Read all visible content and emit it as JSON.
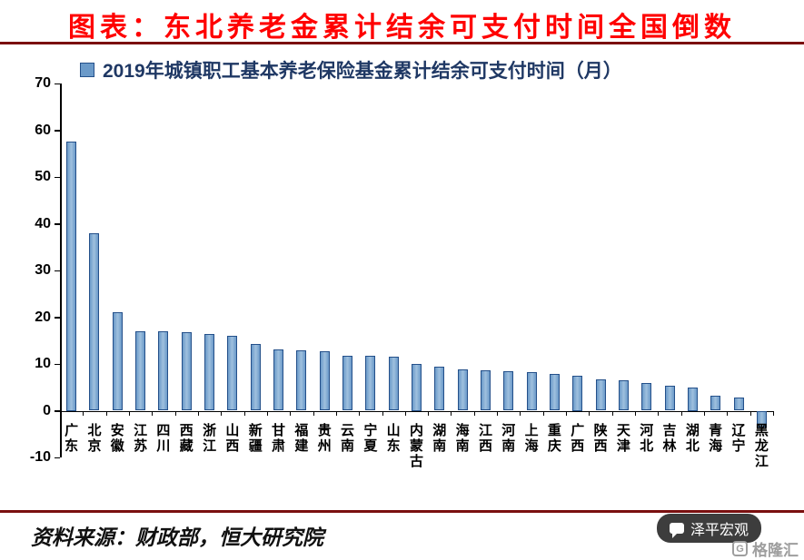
{
  "header": {
    "title": "图表：东北养老金累计结余可支付时间全国倒数"
  },
  "legend": {
    "label": "2019年城镇职工基本养老保险基金累计结余可支付时间（月）"
  },
  "footer": {
    "source": "资料来源：财政部，恒大研究院",
    "watermark": "泽平宏观",
    "logo": "格隆汇",
    "logo_letter": "G"
  },
  "colors": {
    "title_red": "#ff0000",
    "divider_maroon": "#7a0f0f",
    "legend_navy": "#1f3864",
    "bar_fill": "#6b9ac9",
    "bar_fill_light": "#9fc0de",
    "bar_border": "#24508a",
    "watermark_bg": "#3d3d3d",
    "logo_grey": "#9e9e9e"
  },
  "chart_data": {
    "type": "bar",
    "title": "2019年城镇职工基本养老保险基金累计结余可支付时间（月）",
    "categories": [
      "广东",
      "北京",
      "安徽",
      "江苏",
      "四川",
      "西藏",
      "浙江",
      "山西",
      "新疆",
      "甘肃",
      "福建",
      "贵州",
      "云南",
      "宁夏",
      "山东",
      "内蒙古",
      "湖南",
      "海南",
      "江西",
      "河南",
      "上海",
      "重庆",
      "广西",
      "陕西",
      "天津",
      "河北",
      "吉林",
      "湖北",
      "青海",
      "辽宁",
      "黑龙江"
    ],
    "values": [
      57.5,
      38,
      21,
      17,
      17,
      16.8,
      16.5,
      16,
      14.3,
      13.2,
      13,
      12.8,
      11.8,
      11.7,
      11.6,
      10,
      9.5,
      8.8,
      8.7,
      8.5,
      8.3,
      7.9,
      7.5,
      6.7,
      6.5,
      6,
      5.4,
      5,
      3.3,
      2.9,
      -3.5
    ],
    "xlabel": "",
    "ylabel": "",
    "ylim": [
      -10,
      70
    ],
    "yticks": [
      70,
      60,
      50,
      40,
      30,
      20,
      10,
      0,
      -10
    ],
    "grid": false,
    "legend_position": "top-left"
  }
}
